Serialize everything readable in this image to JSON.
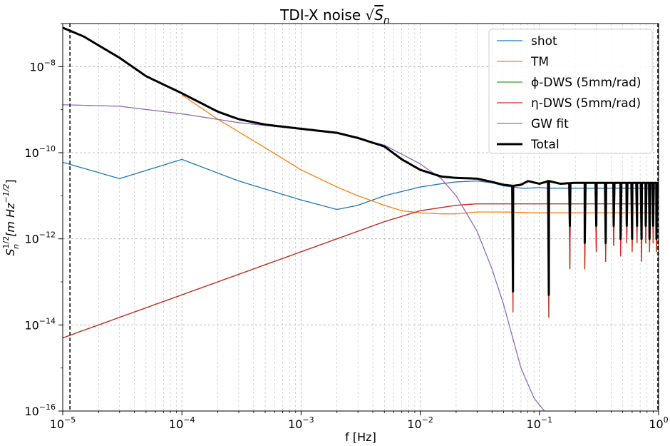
{
  "chart_data": {
    "type": "line",
    "title": "TDI-X noise √Sₙ",
    "title_prefix": "TDI-X noise ",
    "title_math": "S",
    "title_math_sub": "n",
    "xlabel": "f [Hz]",
    "ylabel_main": "S",
    "ylabel_sub": "n",
    "ylabel_sup": "1/2",
    "ylabel_unit": "[m Hz",
    "ylabel_unit_sup": "−1/2",
    "ylabel_close": "]",
    "x_scale": "log",
    "y_scale": "log",
    "xlim": [
      1e-05,
      1.0
    ],
    "ylim": [
      1e-16,
      1e-07
    ],
    "grid": true,
    "legend_placement": "top-right",
    "x_ticks": [
      {
        "base": "10",
        "exp": "−5",
        "value": 1e-05
      },
      {
        "base": "10",
        "exp": "−4",
        "value": 0.0001
      },
      {
        "base": "10",
        "exp": "−3",
        "value": 0.001
      },
      {
        "base": "10",
        "exp": "−2",
        "value": 0.01
      },
      {
        "base": "10",
        "exp": "−1",
        "value": 0.1
      },
      {
        "base": "10",
        "exp": "0",
        "value": 1.0
      }
    ],
    "y_ticks": [
      {
        "base": "10",
        "exp": "−16",
        "value": 1e-16
      },
      {
        "base": "10",
        "exp": "−14",
        "value": 1e-14
      },
      {
        "base": "10",
        "exp": "−12",
        "value": 1e-12
      },
      {
        "base": "10",
        "exp": "−10",
        "value": 1e-10
      },
      {
        "base": "10",
        "exp": "−8",
        "value": 1e-08
      }
    ],
    "vertical_lines": [
      1.15e-05,
      1.0
    ],
    "series": [
      {
        "name": "shot",
        "color": "#1f77b4",
        "width": 1.3,
        "x": [
          1e-05,
          3e-05,
          0.0001,
          0.0003,
          0.001,
          0.002,
          0.003,
          0.005,
          0.01,
          0.015,
          0.02,
          0.03,
          0.04,
          0.05,
          0.06,
          0.07,
          0.08,
          0.1,
          0.12,
          0.15,
          0.2,
          0.3,
          0.5,
          1.0
        ],
        "y": [
          6e-11,
          2.5e-11,
          7e-11,
          2.2e-11,
          8e-12,
          4.8e-12,
          6e-12,
          1e-11,
          1.6e-11,
          1.9e-11,
          2.1e-11,
          2.2e-11,
          2e-11,
          1.7e-11,
          1.6e-11,
          1.5e-11,
          1.5e-11,
          1.55e-11,
          1.5e-11,
          1.5e-11,
          1.5e-11,
          1.5e-11,
          1.5e-11,
          1.5e-11
        ]
      },
      {
        "name": "TM",
        "color": "#ff7f0e",
        "width": 1.3,
        "x": [
          0.0001,
          0.0002,
          0.0005,
          0.001,
          0.002,
          0.003,
          0.005,
          0.007,
          0.01,
          0.015,
          0.02,
          0.03,
          0.05,
          0.1,
          0.2,
          0.5,
          1.0
        ],
        "y": [
          2.2e-09,
          6e-10,
          1.3e-10,
          4e-11,
          1.6e-11,
          1e-11,
          6e-12,
          4.5e-12,
          4e-12,
          3.8e-12,
          3.8e-12,
          4.2e-12,
          4.2e-12,
          4e-12,
          4e-12,
          4e-12,
          4e-12
        ]
      },
      {
        "name": "ϕ-DWS (5mm/rad)",
        "color": "#2ca02c",
        "width": 1.3,
        "x": [
          1e-05,
          0.0001,
          0.001,
          0.005,
          0.01,
          0.02,
          0.03,
          0.05,
          0.1,
          0.2,
          0.5,
          1.0
        ],
        "y": [
          5e-15,
          5e-14,
          5e-13,
          2.5e-12,
          4.5e-12,
          6e-12,
          6.5e-12,
          6.5e-12,
          6.5e-12,
          6.5e-12,
          6.5e-12,
          6.5e-12
        ]
      },
      {
        "name": "η-DWS (5mm/rad)",
        "color": "#d62728",
        "width": 1.3,
        "x": [
          1e-05,
          0.0001,
          0.001,
          0.005,
          0.01,
          0.02,
          0.03,
          0.05,
          0.1,
          0.2,
          0.5,
          1.0
        ],
        "y": [
          5e-15,
          5e-14,
          5e-13,
          2.5e-12,
          4.5e-12,
          6e-12,
          6.5e-12,
          6.5e-12,
          6.5e-12,
          6.5e-12,
          6.5e-12,
          6.5e-12
        ]
      },
      {
        "name": "GW fit",
        "color": "#9467bd",
        "width": 1.3,
        "x": [
          1e-05,
          3e-05,
          0.0001,
          0.0003,
          0.001,
          0.002,
          0.005,
          0.01,
          0.015,
          0.02,
          0.03,
          0.04,
          0.05,
          0.07,
          0.09,
          0.11
        ],
        "y": [
          1.3e-09,
          1.2e-09,
          8e-10,
          5e-10,
          3.5e-10,
          2.8e-10,
          1.5e-10,
          5.5e-11,
          2.5e-11,
          1e-11,
          1.5e-12,
          2e-13,
          3e-14,
          1e-15,
          2e-16,
          1e-16
        ]
      },
      {
        "name": "Total",
        "color": "#000000",
        "width": 3,
        "x": [
          1e-05,
          1.5e-05,
          3e-05,
          5e-05,
          0.0001,
          0.0002,
          0.0003,
          0.0005,
          0.001,
          0.002,
          0.003,
          0.005,
          0.007,
          0.01,
          0.015,
          0.02,
          0.03,
          0.04,
          0.05,
          0.06,
          0.07,
          0.08,
          0.1,
          0.12,
          0.15,
          0.2,
          0.3,
          0.5,
          1.0
        ],
        "y": [
          8e-08,
          5e-08,
          1.6e-08,
          6e-09,
          2.4e-09,
          9e-10,
          6e-10,
          4.5e-10,
          3.6e-10,
          2.9e-10,
          2.2e-10,
          1.4e-10,
          7e-11,
          4e-11,
          2.8e-11,
          2.6e-11,
          2.5e-11,
          2.1e-11,
          1.8e-11,
          1.7e-11,
          1.8e-11,
          2.2e-11,
          1.9e-11,
          2.2e-11,
          1.9e-11,
          2e-11,
          2e-11,
          2e-11,
          2e-11
        ]
      }
    ],
    "notches": [
      {
        "f": 0.06,
        "total": 6e-14,
        "shot": 4e-13,
        "tm": 3e-14,
        "dws": 2e-14
      },
      {
        "f": 0.12,
        "total": 5e-14,
        "shot": 1e-13,
        "tm": 3e-14,
        "dws": 1.5e-14
      },
      {
        "f": 0.18,
        "total": 2e-12,
        "shot": 2e-12,
        "tm": 2e-13,
        "dws": 2e-13
      },
      {
        "f": 0.24,
        "total": 8e-13,
        "shot": 8e-13,
        "tm": 2e-13,
        "dws": 2e-13
      },
      {
        "f": 0.3,
        "total": 2e-12,
        "shot": 2e-12,
        "tm": 5e-13,
        "dws": 5e-13
      },
      {
        "f": 0.36,
        "total": 8e-13,
        "shot": 8e-13,
        "tm": 3e-13,
        "dws": 3e-13
      },
      {
        "f": 0.42,
        "total": 2e-12,
        "shot": 2e-12,
        "tm": 7e-13,
        "dws": 7e-13
      },
      {
        "f": 0.48,
        "total": 1e-12,
        "shot": 1e-12,
        "tm": 4e-13,
        "dws": 4e-13
      },
      {
        "f": 0.54,
        "total": 2e-12,
        "shot": 2e-12,
        "tm": 8e-13,
        "dws": 8e-13
      },
      {
        "f": 0.6,
        "total": 1e-12,
        "shot": 1e-12,
        "tm": 5e-13,
        "dws": 5e-13
      },
      {
        "f": 0.66,
        "total": 2e-12,
        "shot": 2e-12,
        "tm": 8e-13,
        "dws": 8e-13
      },
      {
        "f": 0.72,
        "total": 1e-12,
        "shot": 1e-12,
        "tm": 3e-13,
        "dws": 3e-13
      },
      {
        "f": 0.78,
        "total": 2e-12,
        "shot": 2e-12,
        "tm": 8e-13,
        "dws": 8e-13
      },
      {
        "f": 0.84,
        "total": 1e-12,
        "shot": 1e-12,
        "tm": 5e-13,
        "dws": 5e-13
      },
      {
        "f": 0.9,
        "total": 2e-12,
        "shot": 2e-12,
        "tm": 8e-13,
        "dws": 8e-13
      },
      {
        "f": 0.96,
        "total": 1e-12,
        "shot": 1e-12,
        "tm": 5e-13,
        "dws": 5e-13
      }
    ]
  }
}
